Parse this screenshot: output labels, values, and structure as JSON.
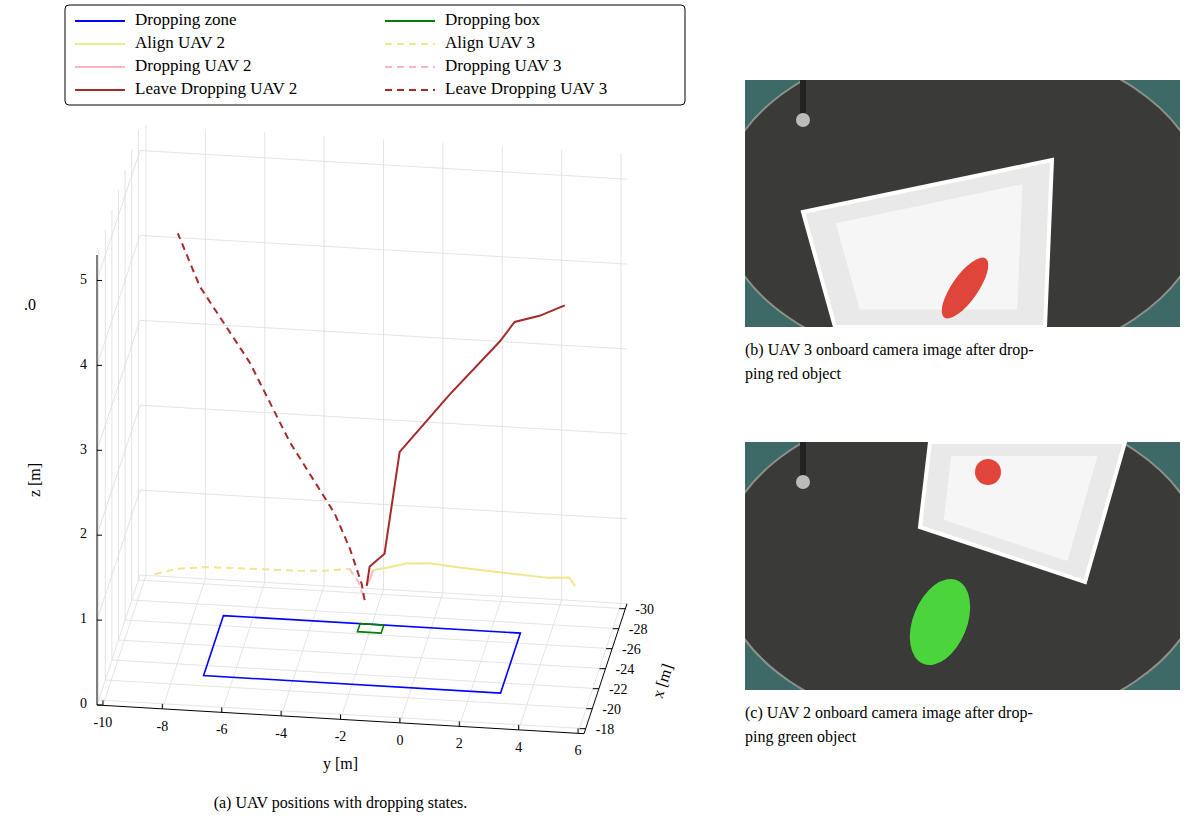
{
  "chart_data": {
    "type": "line3d",
    "caption": "(a) UAV positions with dropping states.",
    "xlabel": "x [m]",
    "ylabel": "y [m]",
    "zlabel": "z [m]",
    "xlim": [
      -30.5,
      -17.5
    ],
    "xticks": [
      -30,
      -28,
      -26,
      -24,
      -22,
      -20,
      -18
    ],
    "ylim": [
      -10.2,
      6.2
    ],
    "yticks": [
      -10,
      -8,
      -6,
      -4,
      -2,
      0,
      2,
      4,
      6
    ],
    "zlim": [
      0,
      5.3
    ],
    "zticks": [
      0,
      1,
      2,
      3,
      4,
      5
    ],
    "grid": true,
    "legend": "top",
    "series": [
      {
        "name": "Dropping zone",
        "type": "polygon",
        "color": "#0000ff",
        "line_style": "solid",
        "x": [
          -27,
          -21,
          -21,
          -27
        ],
        "y": [
          -7,
          -7,
          3,
          3
        ],
        "z": [
          0,
          0,
          0,
          0
        ]
      },
      {
        "name": "Dropping box",
        "type": "polygon",
        "color": "#008000",
        "line_style": "solid",
        "x": [
          -27,
          -26.2,
          -26.2,
          -27
        ],
        "y": [
          -2.4,
          -2.4,
          -1.6,
          -1.6
        ],
        "z": [
          0,
          0,
          0,
          0
        ]
      },
      {
        "name": "Align UAV 2",
        "type": "line",
        "color": "#f0e68c",
        "line_style": "solid",
        "x": [
          -26.5,
          -26.5,
          -26.5,
          -26.5,
          -26.5,
          -26.5,
          -26.5,
          -26.5,
          -26.5,
          -26.5
        ],
        "y": [
          4.9,
          4.7,
          4.0,
          3.0,
          2.0,
          1.0,
          0.0,
          -0.8,
          -1.4,
          -1.9
        ],
        "z": [
          0.65,
          0.75,
          0.73,
          0.75,
          0.77,
          0.79,
          0.82,
          0.8,
          0.74,
          0.7
        ]
      },
      {
        "name": "Align UAV 3",
        "type": "line",
        "color": "#f0e68c",
        "line_style": "dashed",
        "x": [
          -26.5,
          -26.5,
          -26.5,
          -26.5,
          -26.5,
          -26.5,
          -26.5
        ],
        "y": [
          -9.26,
          -8.5,
          -7.5,
          -6,
          -4.5,
          -3.5,
          -2.7
        ],
        "z": [
          0.5,
          0.58,
          0.62,
          0.63,
          0.64,
          0.66,
          0.7
        ]
      },
      {
        "name": "Dropping UAV 2",
        "type": "line",
        "color": "#ffb6c1",
        "line_style": "solid",
        "x": [
          -26.5,
          -26.5,
          -26.5
        ],
        "y": [
          -1.9,
          -2.0,
          -2.12
        ],
        "z": [
          0.7,
          0.6,
          0.51
        ]
      },
      {
        "name": "Dropping UAV 3",
        "type": "line",
        "color": "#ffb6c1",
        "line_style": "dashed",
        "x": [
          -26.5,
          -26.5,
          -26.5
        ],
        "y": [
          -2.7,
          -2.4,
          -2.19
        ],
        "z": [
          0.7,
          0.55,
          0.34
        ]
      },
      {
        "name": "Leave Dropping UAV 2",
        "type": "line",
        "color": "#a52a2a",
        "line_style": "solid",
        "x": [
          -26.5,
          -26.5,
          -26.5,
          -26.5,
          -26.5,
          -26.5,
          -26.5,
          -26.5,
          -26.5
        ],
        "y": [
          -2.12,
          -2.02,
          -1.52,
          -1.01,
          0.67,
          2.36,
          2.86,
          3.7,
          4.55
        ],
        "z": [
          0.51,
          0.74,
          0.9,
          2.11,
          2.82,
          3.48,
          3.72,
          3.81,
          3.95
        ]
      },
      {
        "name": "Leave Dropping UAV 3",
        "type": "line",
        "color": "#a52a2a",
        "line_style": "dashed",
        "x": [
          -26.5,
          -26.5,
          -26.5,
          -26.5,
          -26.5,
          -26.5,
          -26.5,
          -26.5
        ],
        "y": [
          -2.19,
          -2.29,
          -2.69,
          -3.2,
          -4.71,
          -6.06,
          -7.74,
          -8.48
        ],
        "z": [
          0.34,
          0.53,
          0.94,
          1.34,
          2.15,
          3.06,
          3.92,
          4.53
        ]
      }
    ]
  },
  "images": [
    {
      "caption": [
        "(b) UAV 3 onboard camera image after drop-",
        "ping red object"
      ]
    },
    {
      "caption": [
        "(c) UAV 2 onboard camera image after drop-",
        "ping green object"
      ]
    }
  ],
  "stray_text": ".0"
}
